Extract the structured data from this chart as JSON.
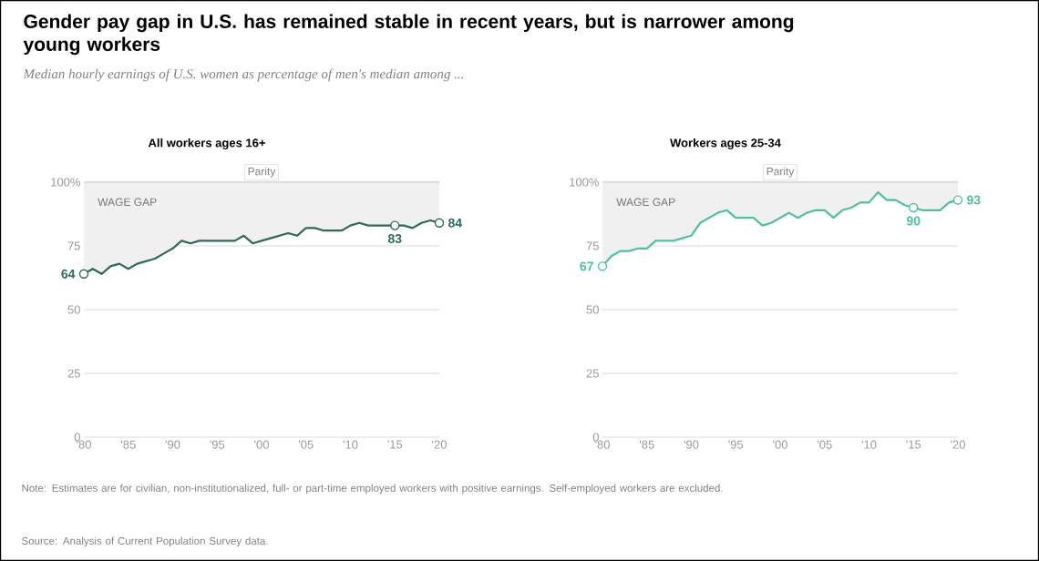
{
  "chart_data": [
    {
      "type": "other",
      "title": "Gender pay gap in U.S. has remained stable in recent years, but is narrower among young workers",
      "subtitle": "Median hourly earnings of U.S. women as percentage of men's median among ...",
      "annotations": [
        "Note: Estimates are for civilian, non-institutionalized, full- or part-time employed workers with positive earnings. Self-employed workers are excluded.",
        "Source: Analysis of Current Population Survey data."
      ]
    },
    {
      "type": "line",
      "title": "All workers ages 16+",
      "x": [
        1980,
        1981,
        1982,
        1983,
        1984,
        1985,
        1986,
        1987,
        1988,
        1989,
        1990,
        1991,
        1992,
        1993,
        1994,
        1995,
        1996,
        1997,
        1998,
        1999,
        2000,
        2001,
        2002,
        2003,
        2004,
        2005,
        2006,
        2007,
        2008,
        2009,
        2010,
        2011,
        2012,
        2013,
        2014,
        2015,
        2016,
        2017,
        2018,
        2019,
        2020
      ],
      "series": [
        {
          "color": "#2e6b4f",
          "values": [
            64,
            66,
            64,
            67,
            68,
            66,
            68,
            69,
            70,
            72,
            74,
            77,
            76,
            77,
            77,
            77,
            77,
            77,
            79,
            76,
            77,
            78,
            79,
            80,
            79,
            82,
            82,
            81,
            81,
            81,
            83,
            84,
            83,
            83,
            83,
            83,
            83,
            82,
            84,
            85,
            84
          ],
          "lower": [
            64,
            66,
            64,
            67,
            68,
            66,
            68,
            69,
            70,
            72,
            74,
            77,
            76,
            77,
            77,
            77,
            77,
            77,
            79,
            76,
            77,
            78,
            79,
            80,
            79,
            82,
            82,
            81,
            81,
            81,
            83,
            84,
            83,
            83,
            83,
            83,
            83,
            82,
            84,
            85,
            84
          ],
          "upper": [
            100,
            100,
            100,
            100,
            100,
            100,
            100,
            100,
            100,
            100,
            100,
            100,
            100,
            100,
            100,
            100,
            100,
            100,
            100,
            100,
            100,
            100,
            100,
            100,
            100,
            100,
            100,
            100,
            100,
            100,
            100,
            100,
            100,
            100,
            100,
            100,
            100,
            100,
            100,
            100,
            100
          ],
          "value_labels": [
            "64",
            null,
            null,
            null,
            null,
            null,
            null,
            null,
            null,
            null,
            null,
            null,
            null,
            null,
            null,
            null,
            null,
            null,
            null,
            null,
            null,
            null,
            null,
            null,
            null,
            null,
            null,
            null,
            null,
            null,
            null,
            null,
            null,
            null,
            null,
            "83",
            null,
            null,
            null,
            null,
            "84"
          ]
        }
      ],
      "xlim": [
        1980,
        2020
      ],
      "ylim": [
        0,
        100
      ],
      "xticks": [
        {
          "value": 1980,
          "label": "'80"
        },
        {
          "value": 1985,
          "label": "'85"
        },
        {
          "value": 1990,
          "label": "'90"
        },
        {
          "value": 1995,
          "label": "'95"
        },
        {
          "value": 2000,
          "label": "'00"
        },
        {
          "value": 2005,
          "label": "'05"
        },
        {
          "value": 2010,
          "label": "'10"
        },
        {
          "value": 2015,
          "label": "'15"
        },
        {
          "value": 2020,
          "label": "'20"
        }
      ],
      "yticks": [
        0,
        25,
        50,
        75,
        {
          "value": 100,
          "label": "100%"
        }
      ],
      "grid": "y",
      "ref_lines": [
        {
          "axis": "y",
          "value": 100,
          "label": "Parity",
          "color": "#cccccc"
        }
      ],
      "annotations": [
        "WAGE GAP"
      ]
    },
    {
      "type": "line",
      "title": "Workers ages 25-34",
      "x": [
        1980,
        1981,
        1982,
        1983,
        1984,
        1985,
        1986,
        1987,
        1988,
        1989,
        1990,
        1991,
        1992,
        1993,
        1994,
        1995,
        1996,
        1997,
        1998,
        1999,
        2000,
        2001,
        2002,
        2003,
        2004,
        2005,
        2006,
        2007,
        2008,
        2009,
        2010,
        2011,
        2012,
        2013,
        2014,
        2015,
        2016,
        2017,
        2018,
        2019,
        2020
      ],
      "series": [
        {
          "color": "#4fbf9f",
          "values": [
            67,
            71,
            73,
            73,
            74,
            74,
            77,
            77,
            77,
            78,
            79,
            84,
            86,
            88,
            89,
            86,
            86,
            86,
            83,
            84,
            86,
            88,
            86,
            88,
            89,
            89,
            86,
            89,
            90,
            92,
            92,
            96,
            93,
            93,
            91,
            90,
            89,
            89,
            89,
            92,
            93
          ],
          "lower": [
            67,
            71,
            73,
            73,
            74,
            74,
            77,
            77,
            77,
            78,
            79,
            84,
            86,
            88,
            89,
            86,
            86,
            86,
            83,
            84,
            86,
            88,
            86,
            88,
            89,
            89,
            86,
            89,
            90,
            92,
            92,
            96,
            93,
            93,
            91,
            90,
            89,
            89,
            89,
            92,
            93
          ],
          "upper": [
            100,
            100,
            100,
            100,
            100,
            100,
            100,
            100,
            100,
            100,
            100,
            100,
            100,
            100,
            100,
            100,
            100,
            100,
            100,
            100,
            100,
            100,
            100,
            100,
            100,
            100,
            100,
            100,
            100,
            100,
            100,
            100,
            100,
            100,
            100,
            100,
            100,
            100,
            100,
            100,
            100
          ],
          "value_labels": [
            "67",
            null,
            null,
            null,
            null,
            null,
            null,
            null,
            null,
            null,
            null,
            null,
            null,
            null,
            null,
            null,
            null,
            null,
            null,
            null,
            null,
            null,
            null,
            null,
            null,
            null,
            null,
            null,
            null,
            null,
            null,
            null,
            null,
            null,
            null,
            "90",
            null,
            null,
            null,
            null,
            "93"
          ]
        }
      ],
      "xlim": [
        1980,
        2020
      ],
      "ylim": [
        0,
        100
      ],
      "xticks": [
        {
          "value": 1980,
          "label": "'80"
        },
        {
          "value": 1985,
          "label": "'85"
        },
        {
          "value": 1990,
          "label": "'90"
        },
        {
          "value": 1995,
          "label": "'95"
        },
        {
          "value": 2000,
          "label": "'00"
        },
        {
          "value": 2005,
          "label": "'05"
        },
        {
          "value": 2010,
          "label": "'10"
        },
        {
          "value": 2015,
          "label": "'15"
        },
        {
          "value": 2020,
          "label": "'20"
        }
      ],
      "yticks": [
        0,
        25,
        50,
        75,
        {
          "value": 100,
          "label": "100%"
        }
      ],
      "grid": "y",
      "ref_lines": [
        {
          "axis": "y",
          "value": 100,
          "label": "Parity",
          "color": "#cccccc"
        }
      ],
      "annotations": [
        "WAGE GAP"
      ]
    }
  ]
}
